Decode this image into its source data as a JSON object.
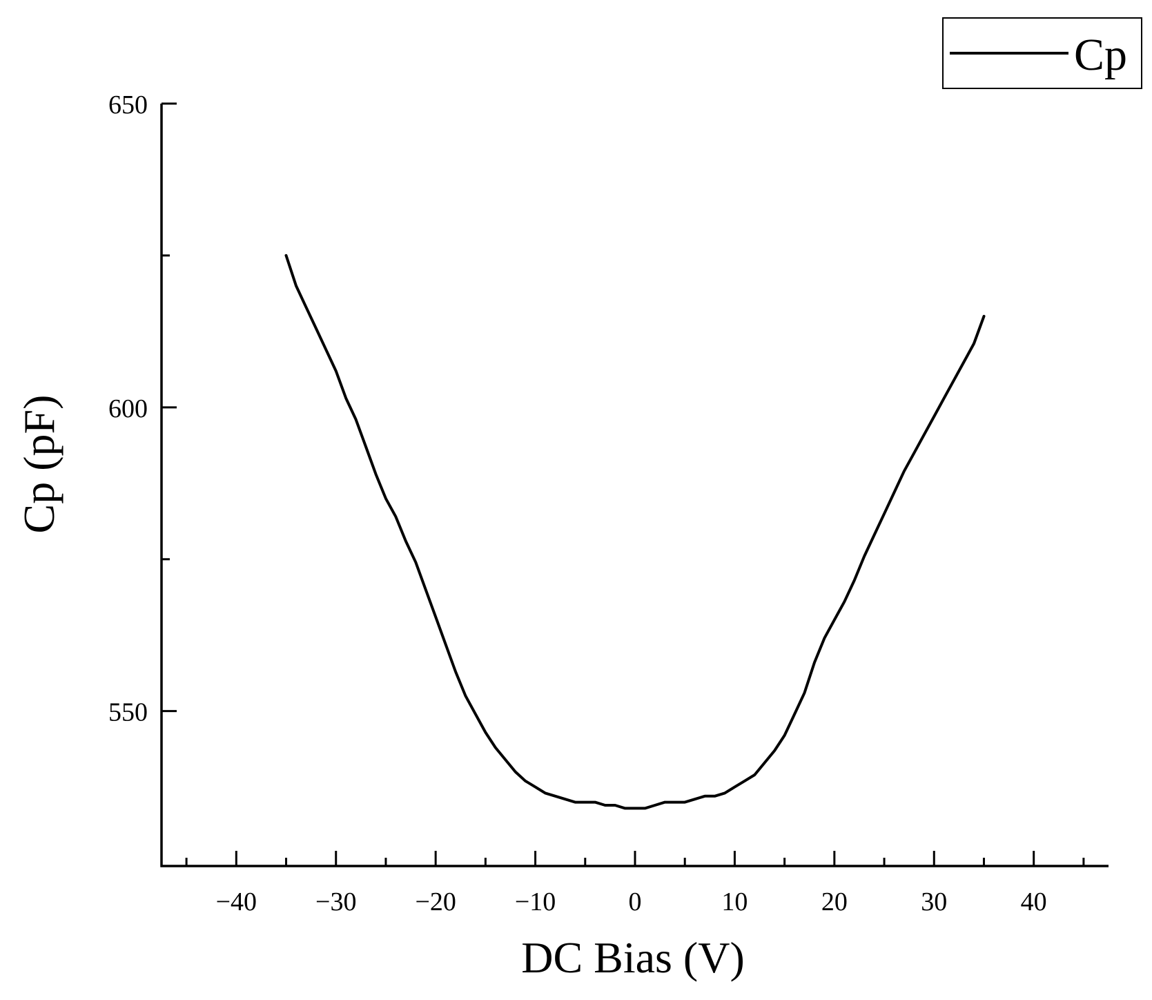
{
  "chart_data": {
    "type": "line",
    "title": "",
    "xlabel": "DC Bias (V)",
    "ylabel": "Cp (pF)",
    "xlim": [
      -47.5,
      47.5
    ],
    "ylim": [
      524.5,
      650
    ],
    "xticks": [
      -40,
      -30,
      -20,
      -10,
      0,
      10,
      20,
      30,
      40
    ],
    "xtick_labels": [
      "−40",
      "−30",
      "−20",
      "−10",
      "0",
      "10",
      "20",
      "30",
      "40"
    ],
    "yticks": [
      550,
      600,
      650
    ],
    "ytick_labels": [
      "550",
      "600",
      "650"
    ],
    "grid": false,
    "legend": {
      "position": "top-right",
      "entries": [
        "Cp"
      ]
    },
    "series": [
      {
        "name": "Cp",
        "color": "#000000",
        "x": [
          -35,
          -34,
          -33,
          -32,
          -31,
          -30,
          -29,
          -28,
          -27,
          -26,
          -25,
          -24,
          -23,
          -22,
          -21,
          -20,
          -19,
          -18,
          -17,
          -16,
          -15,
          -14,
          -13,
          -12,
          -11,
          -10,
          -9,
          -8,
          -7,
          -6,
          -5,
          -4,
          -3,
          -2,
          -1,
          0,
          1,
          2,
          3,
          4,
          5,
          6,
          7,
          8,
          9,
          10,
          11,
          12,
          13,
          14,
          15,
          16,
          17,
          18,
          19,
          20,
          21,
          22,
          23,
          24,
          25,
          26,
          27,
          28,
          29,
          30,
          31,
          32,
          33,
          34,
          35
        ],
        "y": [
          625.0,
          620.0,
          616.5,
          613.0,
          609.5,
          606.0,
          601.5,
          598.0,
          593.5,
          589.0,
          585.0,
          582.0,
          578.0,
          574.5,
          570.0,
          565.5,
          561.0,
          556.5,
          552.5,
          549.5,
          546.5,
          544.0,
          542.0,
          540.0,
          538.5,
          537.5,
          536.5,
          536.0,
          535.5,
          535.0,
          535.0,
          535.0,
          534.5,
          534.5,
          534.0,
          534.0,
          534.0,
          534.5,
          535.0,
          535.0,
          535.0,
          535.5,
          536.0,
          536.0,
          536.5,
          537.5,
          538.5,
          539.5,
          541.5,
          543.5,
          546.0,
          549.5,
          553.0,
          558.0,
          562.0,
          565.0,
          568.0,
          571.5,
          575.5,
          579.0,
          582.5,
          586.0,
          589.5,
          592.5,
          595.5,
          598.5,
          601.5,
          604.5,
          607.5,
          610.5,
          615.0
        ]
      }
    ]
  }
}
